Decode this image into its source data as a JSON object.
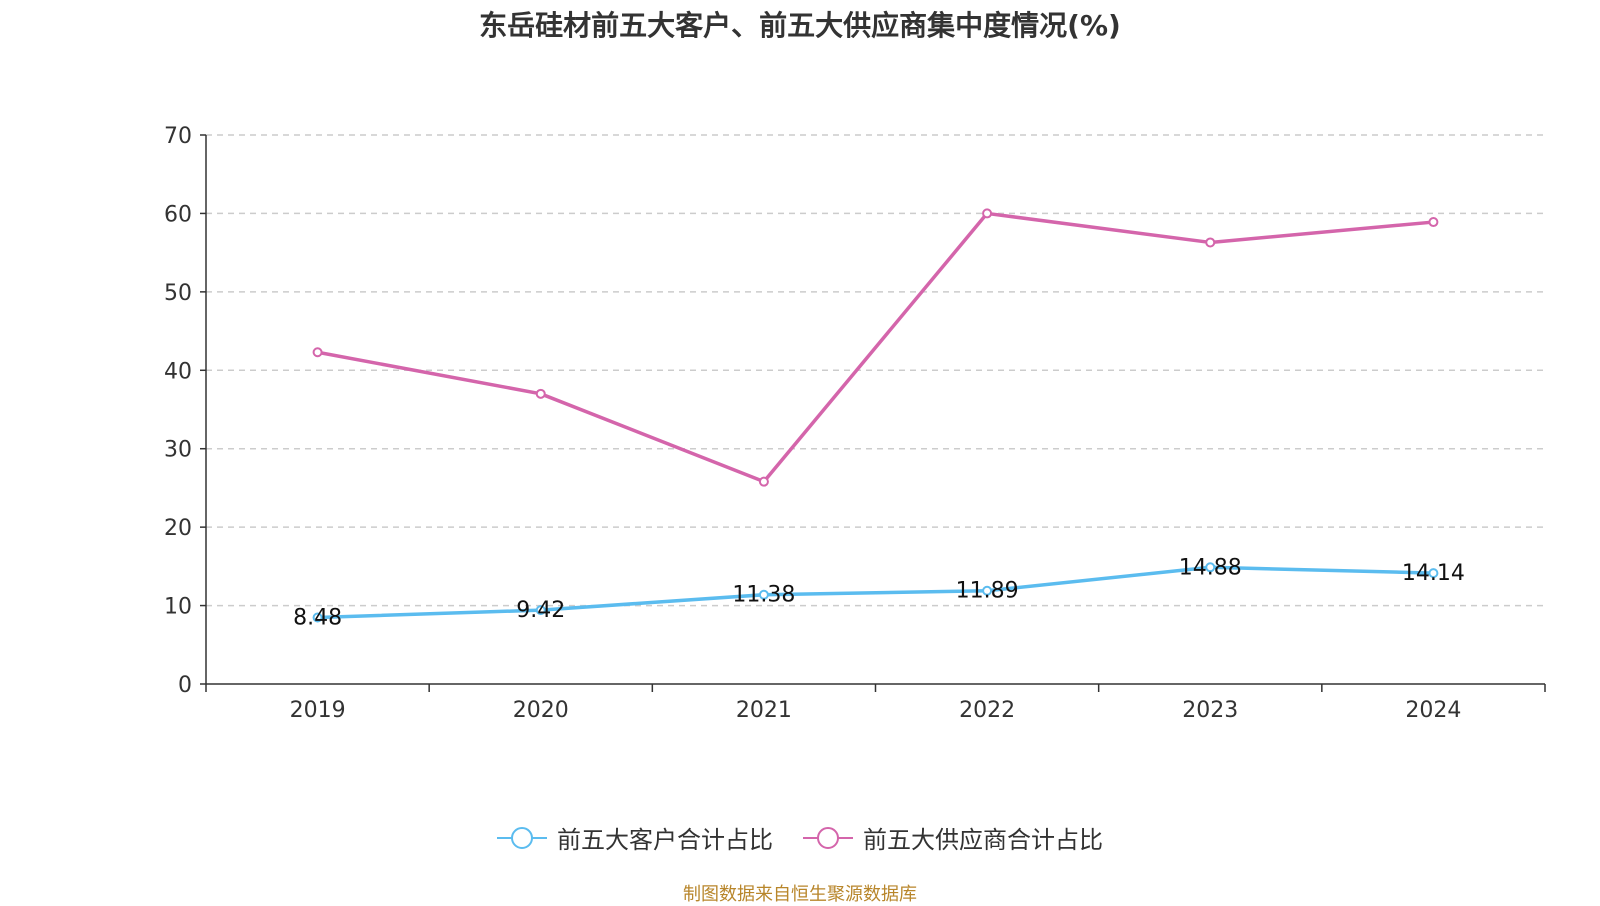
{
  "chart_data": {
    "type": "line",
    "title": "东岳硅材前五大客户、前五大供应商集中度情况(%)",
    "categories": [
      "2019",
      "2020",
      "2021",
      "2022",
      "2023",
      "2024"
    ],
    "ylim": [
      0,
      70
    ],
    "yticks": [
      0,
      10,
      20,
      30,
      40,
      50,
      60,
      70
    ],
    "series": [
      {
        "name": "前五大客户合计占比",
        "color": "#5bbcef",
        "values": [
          8.48,
          9.42,
          11.38,
          11.89,
          14.88,
          14.14
        ],
        "labels": [
          "8.48",
          "9.42",
          "11.38",
          "11.89",
          "14.88",
          "14.14"
        ]
      },
      {
        "name": "前五大供应商合计占比",
        "color": "#d465ab",
        "values": [
          42.3,
          37.0,
          25.8,
          60.0,
          56.3,
          58.9
        ]
      }
    ],
    "grid": true,
    "legend": "bottom-center"
  },
  "source": "制图数据来自恒生聚源数据库"
}
